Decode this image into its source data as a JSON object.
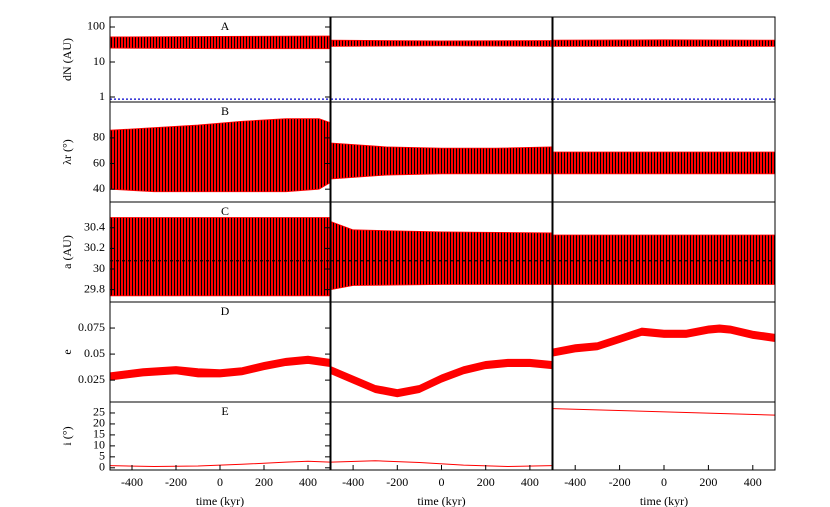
{
  "chart_data": [
    {
      "type": "band",
      "log": true,
      "annotation": "A",
      "ylabel": "dN (AU)",
      "xlim": [
        -500,
        500
      ],
      "ylim": [
        0.72,
        193
      ],
      "yticks": [
        1,
        10,
        100
      ],
      "stripe_color": "#000000",
      "reference": {
        "value": 0.87,
        "color": "#0000cc",
        "dash": "2,2"
      },
      "x": [
        -500,
        0,
        500
      ],
      "series": [
        {
          "color": "#ff0000",
          "values": [
            52,
            54,
            55
          ]
        },
        {
          "color": "#ff0000",
          "values": [
            25,
            24,
            24
          ]
        }
      ]
    },
    {
      "type": "band",
      "log": true,
      "xlim": [
        -500,
        500
      ],
      "ylim": [
        0.72,
        193
      ],
      "stripe_color": "#000000",
      "reference": {
        "value": 0.87,
        "color": "#0000cc",
        "dash": "2,2"
      },
      "x": [
        -500,
        0,
        500
      ],
      "series": [
        {
          "color": "#ff0000",
          "values": [
            42,
            40,
            41
          ]
        },
        {
          "color": "#ff0000",
          "values": [
            28,
            29,
            28
          ]
        }
      ]
    },
    {
      "type": "band",
      "log": true,
      "xlim": [
        -500,
        500
      ],
      "ylim": [
        0.72,
        193
      ],
      "stripe_color": "#000000",
      "reference": {
        "value": 0.87,
        "color": "#0000cc",
        "dash": "2,2"
      },
      "x": [
        -500,
        0,
        500
      ],
      "series": [
        {
          "color": "#ff0000",
          "values": [
            42,
            43,
            42
          ]
        },
        {
          "color": "#ff0000",
          "values": [
            28,
            28,
            28
          ]
        }
      ]
    },
    {
      "type": "band",
      "annotation": "B",
      "ylabel": "λr (°)",
      "xlim": [
        -500,
        500
      ],
      "ylim": [
        30,
        108
      ],
      "yticks": [
        40,
        60,
        80
      ],
      "stripe_color": "#000000",
      "x": [
        -500,
        -300,
        -100,
        100,
        300,
        450,
        500
      ],
      "series": [
        {
          "color": "#ff0000",
          "values": [
            86,
            88,
            90,
            93,
            95,
            95,
            92
          ]
        },
        {
          "color": "#ff0000",
          "values": [
            40,
            38,
            38,
            38,
            38,
            40,
            45
          ]
        }
      ]
    },
    {
      "type": "band",
      "xlim": [
        -500,
        500
      ],
      "ylim": [
        30,
        108
      ],
      "stripe_color": "#000000",
      "x": [
        -500,
        -250,
        0,
        250,
        500
      ],
      "series": [
        {
          "color": "#ff0000",
          "values": [
            76,
            73,
            72,
            72,
            73
          ]
        },
        {
          "color": "#ff0000",
          "values": [
            48,
            51,
            52,
            52,
            52
          ]
        }
      ]
    },
    {
      "type": "band",
      "xlim": [
        -500,
        500
      ],
      "ylim": [
        30,
        108
      ],
      "stripe_color": "#000000",
      "x": [
        -500,
        0,
        500
      ],
      "series": [
        {
          "color": "#ff0000",
          "values": [
            69,
            69,
            69
          ]
        },
        {
          "color": "#ff0000",
          "values": [
            52,
            52,
            52
          ]
        }
      ]
    },
    {
      "type": "band",
      "annotation": "C",
      "ylabel": "a (AU)",
      "xlim": [
        -500,
        500
      ],
      "ylim": [
        29.68,
        30.65
      ],
      "yticks": [
        29.8,
        30,
        30.2,
        30.4
      ],
      "stripe_color": "#000000",
      "reference": {
        "value": 30.08,
        "color": "#000000",
        "dash": "3,3"
      },
      "x": [
        -500,
        0,
        500
      ],
      "series": [
        {
          "color": "#ff0000",
          "values": [
            30.5,
            30.5,
            30.5
          ]
        },
        {
          "color": "#ff0000",
          "values": [
            29.74,
            29.74,
            29.74
          ]
        }
      ]
    },
    {
      "type": "band",
      "xlim": [
        -500,
        500
      ],
      "ylim": [
        29.68,
        30.65
      ],
      "stripe_color": "#000000",
      "reference": {
        "value": 30.08,
        "color": "#000000",
        "dash": "3,3"
      },
      "x": [
        -500,
        -400,
        0,
        500
      ],
      "series": [
        {
          "color": "#ff0000",
          "values": [
            30.46,
            30.38,
            30.36,
            30.35
          ]
        },
        {
          "color": "#ff0000",
          "values": [
            29.8,
            29.84,
            29.85,
            29.85
          ]
        }
      ]
    },
    {
      "type": "band",
      "xlim": [
        -500,
        500
      ],
      "ylim": [
        29.68,
        30.65
      ],
      "stripe_color": "#000000",
      "reference": {
        "value": 30.08,
        "color": "#000000",
        "dash": "3,3"
      },
      "x": [
        -500,
        0,
        500
      ],
      "series": [
        {
          "color": "#ff0000",
          "values": [
            30.33,
            30.33,
            30.33
          ]
        },
        {
          "color": "#ff0000",
          "values": [
            29.85,
            29.85,
            29.85
          ]
        }
      ]
    },
    {
      "type": "band",
      "annotation": "D",
      "ylabel": "e",
      "xlim": [
        -500,
        500
      ],
      "ylim": [
        0.004,
        0.1
      ],
      "yticks": [
        0.025,
        0.05,
        0.075
      ],
      "x": [
        -500,
        -350,
        -200,
        -100,
        0,
        100,
        200,
        300,
        400,
        500
      ],
      "series": [
        {
          "color": "#ff0000",
          "values": [
            0.032,
            0.036,
            0.038,
            0.036,
            0.035,
            0.037,
            0.042,
            0.046,
            0.048,
            0.045
          ]
        },
        {
          "color": "#ff0000",
          "values": [
            0.025,
            0.029,
            0.031,
            0.028,
            0.028,
            0.03,
            0.035,
            0.039,
            0.041,
            0.038
          ]
        }
      ]
    },
    {
      "type": "band",
      "xlim": [
        -500,
        500
      ],
      "ylim": [
        0.004,
        0.1
      ],
      "x": [
        -500,
        -400,
        -300,
        -200,
        -100,
        0,
        100,
        200,
        300,
        400,
        500
      ],
      "series": [
        {
          "color": "#ff0000",
          "values": [
            0.038,
            0.029,
            0.02,
            0.016,
            0.02,
            0.03,
            0.038,
            0.043,
            0.045,
            0.045,
            0.043
          ]
        },
        {
          "color": "#ff0000",
          "values": [
            0.031,
            0.022,
            0.013,
            0.009,
            0.013,
            0.023,
            0.031,
            0.036,
            0.038,
            0.038,
            0.036
          ]
        }
      ]
    },
    {
      "type": "band",
      "xlim": [
        -500,
        500
      ],
      "ylim": [
        0.004,
        0.1
      ],
      "x": [
        -500,
        -400,
        -300,
        -200,
        -100,
        0,
        100,
        200,
        250,
        300,
        400,
        500
      ],
      "series": [
        {
          "color": "#ff0000",
          "values": [
            0.055,
            0.059,
            0.061,
            0.068,
            0.075,
            0.073,
            0.073,
            0.077,
            0.078,
            0.077,
            0.072,
            0.069
          ]
        },
        {
          "color": "#ff0000",
          "values": [
            0.048,
            0.052,
            0.054,
            0.061,
            0.068,
            0.066,
            0.066,
            0.07,
            0.071,
            0.07,
            0.065,
            0.062
          ]
        }
      ]
    },
    {
      "type": "line",
      "annotation": "E",
      "ylabel": "i (°)",
      "xlabel": "time (kyr)",
      "xlim": [
        -500,
        500
      ],
      "ylim": [
        -1,
        30
      ],
      "xticks": [
        -400,
        -200,
        0,
        200,
        400
      ],
      "yticks": [
        0,
        5,
        10,
        15,
        20,
        25
      ],
      "x": [
        -500,
        -300,
        -100,
        100,
        300,
        400,
        500
      ],
      "series": [
        {
          "color": "#ff0000",
          "values": [
            1,
            0.6,
            0.8,
            1.6,
            2.6,
            3,
            2.6
          ]
        }
      ]
    },
    {
      "type": "line",
      "xlabel": "time (kyr)",
      "xlim": [
        -500,
        500
      ],
      "ylim": [
        -1,
        30
      ],
      "xticks": [
        -400,
        -200,
        0,
        200,
        400
      ],
      "x": [
        -500,
        -300,
        -100,
        100,
        300,
        500
      ],
      "series": [
        {
          "color": "#ff0000",
          "values": [
            2.6,
            3.2,
            2.4,
            1.2,
            0.6,
            1
          ]
        }
      ]
    },
    {
      "type": "line",
      "xlabel": "time (kyr)",
      "xlim": [
        -500,
        500
      ],
      "ylim": [
        -1,
        30
      ],
      "xticks": [
        -400,
        -200,
        0,
        200,
        400
      ],
      "x": [
        -500,
        500
      ],
      "series": [
        {
          "color": "#ff0000",
          "values": [
            27,
            24
          ]
        }
      ]
    }
  ]
}
